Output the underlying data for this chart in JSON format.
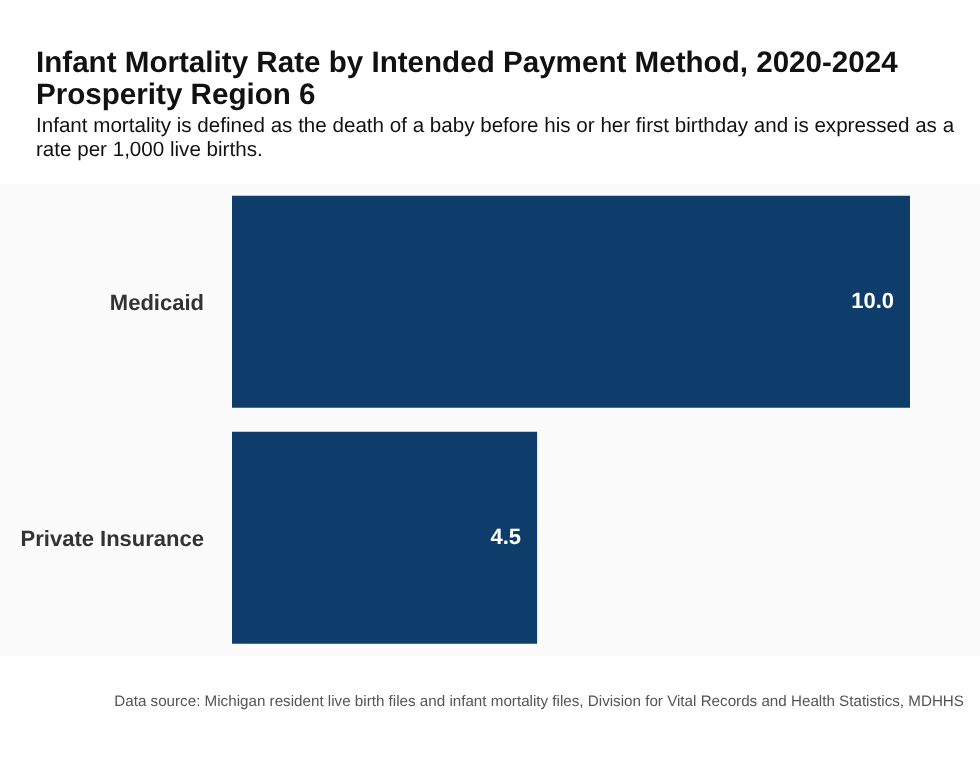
{
  "chart_data": {
    "type": "bar",
    "orientation": "horizontal",
    "title": "Infant Mortality Rate by Intended Payment Method, 2020-2024\nProsperity Region 6",
    "subtitle": "Infant mortality is defined as the death of a baby before his or her first birthday and is expressed as a rate per 1,000 live births.",
    "categories": [
      "Medicaid",
      "Private Insurance"
    ],
    "values": [
      10.0,
      4.5
    ],
    "value_labels": [
      "10.0",
      "4.5"
    ],
    "color": "#0f3d6b",
    "xlim": [
      0,
      10
    ],
    "tick_labels": "y",
    "grid": false,
    "legend": false,
    "annotations": [
      "Data source: Michigan resident live birth files and infant mortality files, Division for Vital Records and Health Statistics, MDHHS"
    ]
  }
}
